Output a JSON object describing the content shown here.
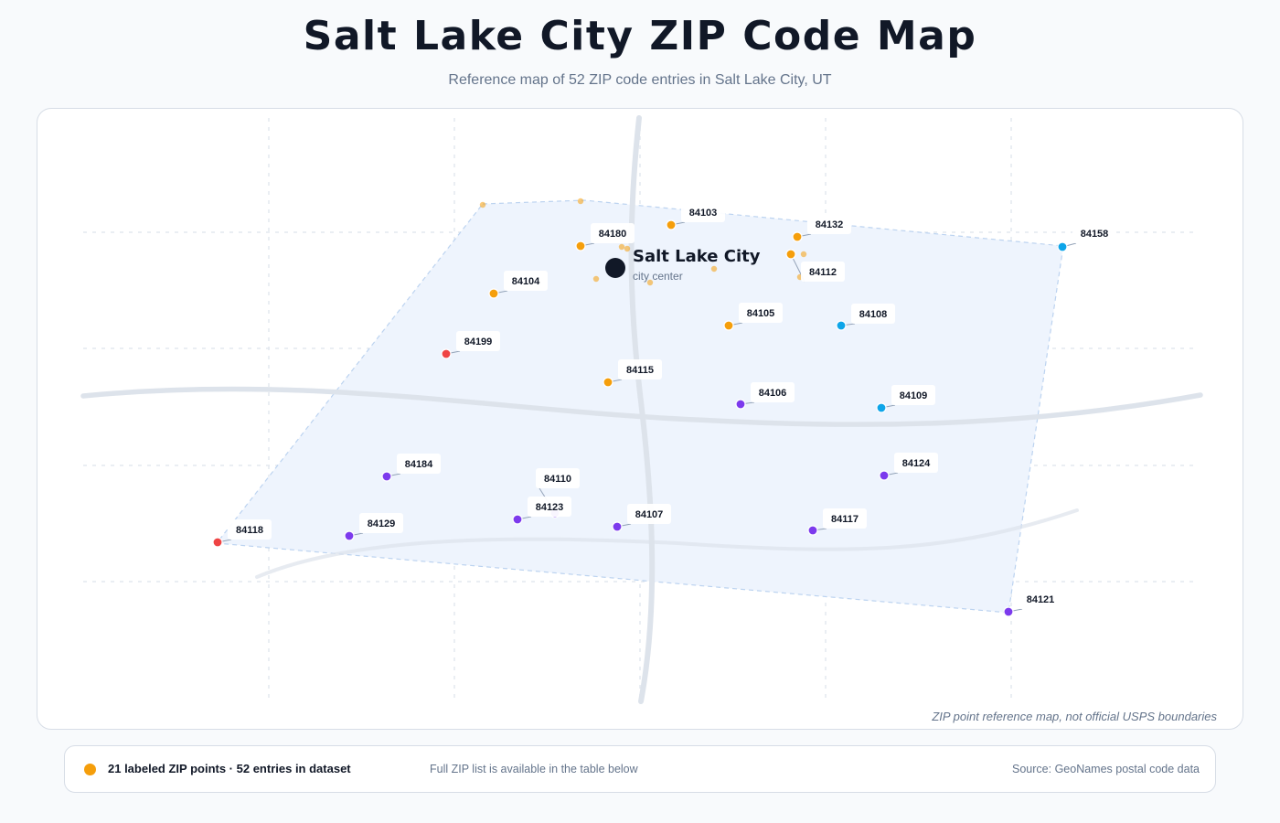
{
  "header": {
    "title": "Salt Lake City ZIP Code Map",
    "subtitle": "Reference map of 52 ZIP code entries in Salt Lake City, UT"
  },
  "map": {
    "disclaimer": "ZIP point reference map, not official USPS boundaries",
    "city": {
      "name": "Salt Lake City",
      "sublabel": "city center"
    },
    "colors": {
      "orange": "#f59e0b",
      "blue": "#0ea5e9",
      "purple": "#7c3aed",
      "red": "#ef4444",
      "city": "#111827",
      "area_fill": "#eef4fd",
      "area_stroke": "#bcd3f0",
      "road": "#dde3eb"
    },
    "zips": [
      {
        "code": "84103",
        "color": "orange"
      },
      {
        "code": "84132",
        "color": "orange"
      },
      {
        "code": "84158",
        "color": "blue"
      },
      {
        "code": "84180",
        "color": "orange"
      },
      {
        "code": "84112",
        "color": "orange"
      },
      {
        "code": "84104",
        "color": "orange"
      },
      {
        "code": "84105",
        "color": "orange"
      },
      {
        "code": "84108",
        "color": "blue"
      },
      {
        "code": "84199",
        "color": "red"
      },
      {
        "code": "84115",
        "color": "orange"
      },
      {
        "code": "84106",
        "color": "purple"
      },
      {
        "code": "84109",
        "color": "blue"
      },
      {
        "code": "84184",
        "color": "purple"
      },
      {
        "code": "84124",
        "color": "purple"
      },
      {
        "code": "84110",
        "color": "purple"
      },
      {
        "code": "84123",
        "color": "purple"
      },
      {
        "code": "84107",
        "color": "purple"
      },
      {
        "code": "84117",
        "color": "purple"
      },
      {
        "code": "84118",
        "color": "red"
      },
      {
        "code": "84129",
        "color": "purple"
      },
      {
        "code": "84121",
        "color": "purple"
      }
    ]
  },
  "footer": {
    "legend_color": "#f59e0b",
    "legend_text": "21 labeled ZIP points · 52 entries in dataset",
    "note": "Full ZIP list is available in the table below",
    "source": "Source: GeoNames postal code data"
  }
}
